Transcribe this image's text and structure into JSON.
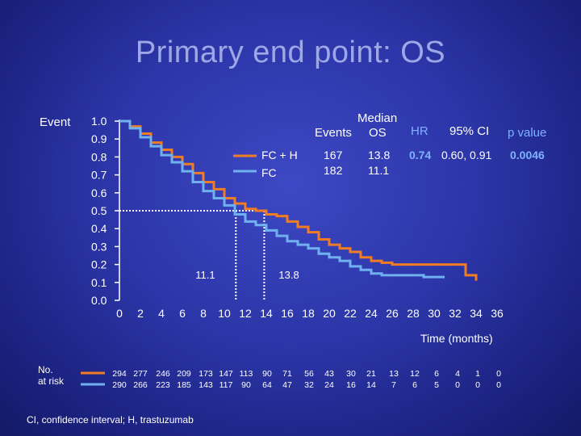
{
  "slide": {
    "title": "Primary end point: OS",
    "event_label": "Event",
    "footnote": "CI, confidence interval; H, trastuzumab",
    "no_at_risk_label_1": "No.",
    "no_at_risk_label_2": "at risk"
  },
  "table": {
    "headers": {
      "median_1": "Median",
      "events": "Events",
      "median_2": "OS",
      "hr": "HR",
      "ci": "95% CI",
      "p": "p value"
    },
    "rows": [
      {
        "arm": "FC + H",
        "events": "167",
        "median_os": "13.8",
        "hr": "0.74",
        "ci": "0.60, 0.91",
        "p": "0.0046"
      },
      {
        "arm": "FC",
        "events": "182",
        "median_os": "11.1",
        "hr": "",
        "ci": "",
        "p": ""
      }
    ]
  },
  "colors": {
    "fch": "#f07c24",
    "fc": "#6fb1ee",
    "accent_text": "#7fb2ff",
    "title": "#9fa8e6"
  },
  "chart_data": {
    "type": "line",
    "title": "",
    "xlabel": "Time (months)",
    "ylabel": "Event",
    "xlim": [
      0,
      36
    ],
    "ylim": [
      0,
      1
    ],
    "xticks": [
      0,
      2,
      4,
      6,
      8,
      10,
      12,
      14,
      16,
      18,
      20,
      22,
      24,
      26,
      28,
      30,
      32,
      34,
      36
    ],
    "yticks": [
      "0.0",
      "0.1",
      "0.2",
      "0.3",
      "0.4",
      "0.5",
      "0.6",
      "0.7",
      "0.8",
      "0.9",
      "1.0"
    ],
    "legend_position": "top-right",
    "series": [
      {
        "name": "FC + H",
        "color": "#f07c24",
        "x": [
          0,
          1,
          2,
          3,
          4,
          5,
          6,
          7,
          8,
          9,
          10,
          11,
          12,
          13,
          14,
          15,
          16,
          17,
          18,
          19,
          20,
          21,
          22,
          23,
          24,
          25,
          26,
          27,
          28,
          29,
          30,
          31,
          32,
          33,
          34
        ],
        "y": [
          1.0,
          0.97,
          0.93,
          0.88,
          0.84,
          0.8,
          0.76,
          0.71,
          0.66,
          0.62,
          0.57,
          0.54,
          0.51,
          0.5,
          0.48,
          0.47,
          0.44,
          0.41,
          0.38,
          0.34,
          0.31,
          0.29,
          0.27,
          0.24,
          0.22,
          0.21,
          0.2,
          0.2,
          0.2,
          0.2,
          0.2,
          0.2,
          0.2,
          0.14,
          0.11
        ]
      },
      {
        "name": "FC",
        "color": "#6fb1ee",
        "x": [
          0,
          1,
          2,
          3,
          4,
          5,
          6,
          7,
          8,
          9,
          10,
          11,
          12,
          13,
          14,
          15,
          16,
          17,
          18,
          19,
          20,
          21,
          22,
          23,
          24,
          25,
          26,
          27,
          28,
          29,
          30,
          31
        ],
        "y": [
          1.0,
          0.96,
          0.91,
          0.86,
          0.81,
          0.77,
          0.72,
          0.66,
          0.61,
          0.57,
          0.53,
          0.48,
          0.44,
          0.42,
          0.39,
          0.36,
          0.33,
          0.31,
          0.29,
          0.26,
          0.24,
          0.22,
          0.19,
          0.17,
          0.15,
          0.14,
          0.14,
          0.14,
          0.14,
          0.13,
          0.13,
          0.13
        ]
      }
    ],
    "medians": [
      {
        "value": 11.1,
        "label": "11.1"
      },
      {
        "value": 13.8,
        "label": "13.8"
      }
    ],
    "risk_table": {
      "times": [
        0,
        2,
        4,
        6,
        8,
        10,
        12,
        14,
        16,
        18,
        20,
        22,
        24,
        26,
        28,
        30,
        32,
        34,
        36
      ],
      "rows": [
        {
          "name": "FC + H",
          "values": [
            "294",
            "277",
            "246",
            "209",
            "173",
            "147",
            "113",
            "90",
            "71",
            "56",
            "43",
            "30",
            "21",
            "13",
            "12",
            "6",
            "4",
            "1",
            "0"
          ]
        },
        {
          "name": "FC",
          "values": [
            "290",
            "266",
            "223",
            "185",
            "143",
            "117",
            "90",
            "64",
            "47",
            "32",
            "24",
            "16",
            "14",
            "7",
            "6",
            "5",
            "0",
            "0",
            "0"
          ]
        }
      ]
    }
  }
}
